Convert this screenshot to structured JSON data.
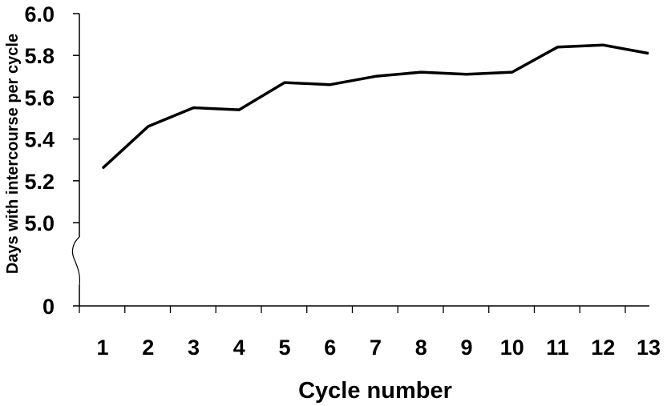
{
  "chart_data": {
    "type": "line",
    "title": "",
    "xlabel": "Cycle number",
    "ylabel": "Days with intercourse per cycle",
    "x": [
      1,
      2,
      3,
      4,
      5,
      6,
      7,
      8,
      9,
      10,
      11,
      12,
      13
    ],
    "x_tick_labels": [
      "1",
      "2",
      "3",
      "4",
      "5",
      "6",
      "7",
      "8",
      "9",
      "10",
      "11",
      "12",
      "13"
    ],
    "y_tick_labels": [
      "6.0",
      "5.8",
      "5.6",
      "5.4",
      "5.2",
      "5.0",
      "0"
    ],
    "y_ticks": [
      6.0,
      5.8,
      5.6,
      5.4,
      5.2,
      5.0
    ],
    "ylim": [
      5.0,
      6.0
    ],
    "y_axis_break": true,
    "y_zero_label": "0",
    "series": [
      {
        "values": [
          5.26,
          5.46,
          5.55,
          5.54,
          5.67,
          5.66,
          5.7,
          5.72,
          5.71,
          5.72,
          5.84,
          5.85,
          5.81
        ]
      }
    ],
    "grid": false,
    "legend": "none",
    "line_color": "#000000"
  }
}
